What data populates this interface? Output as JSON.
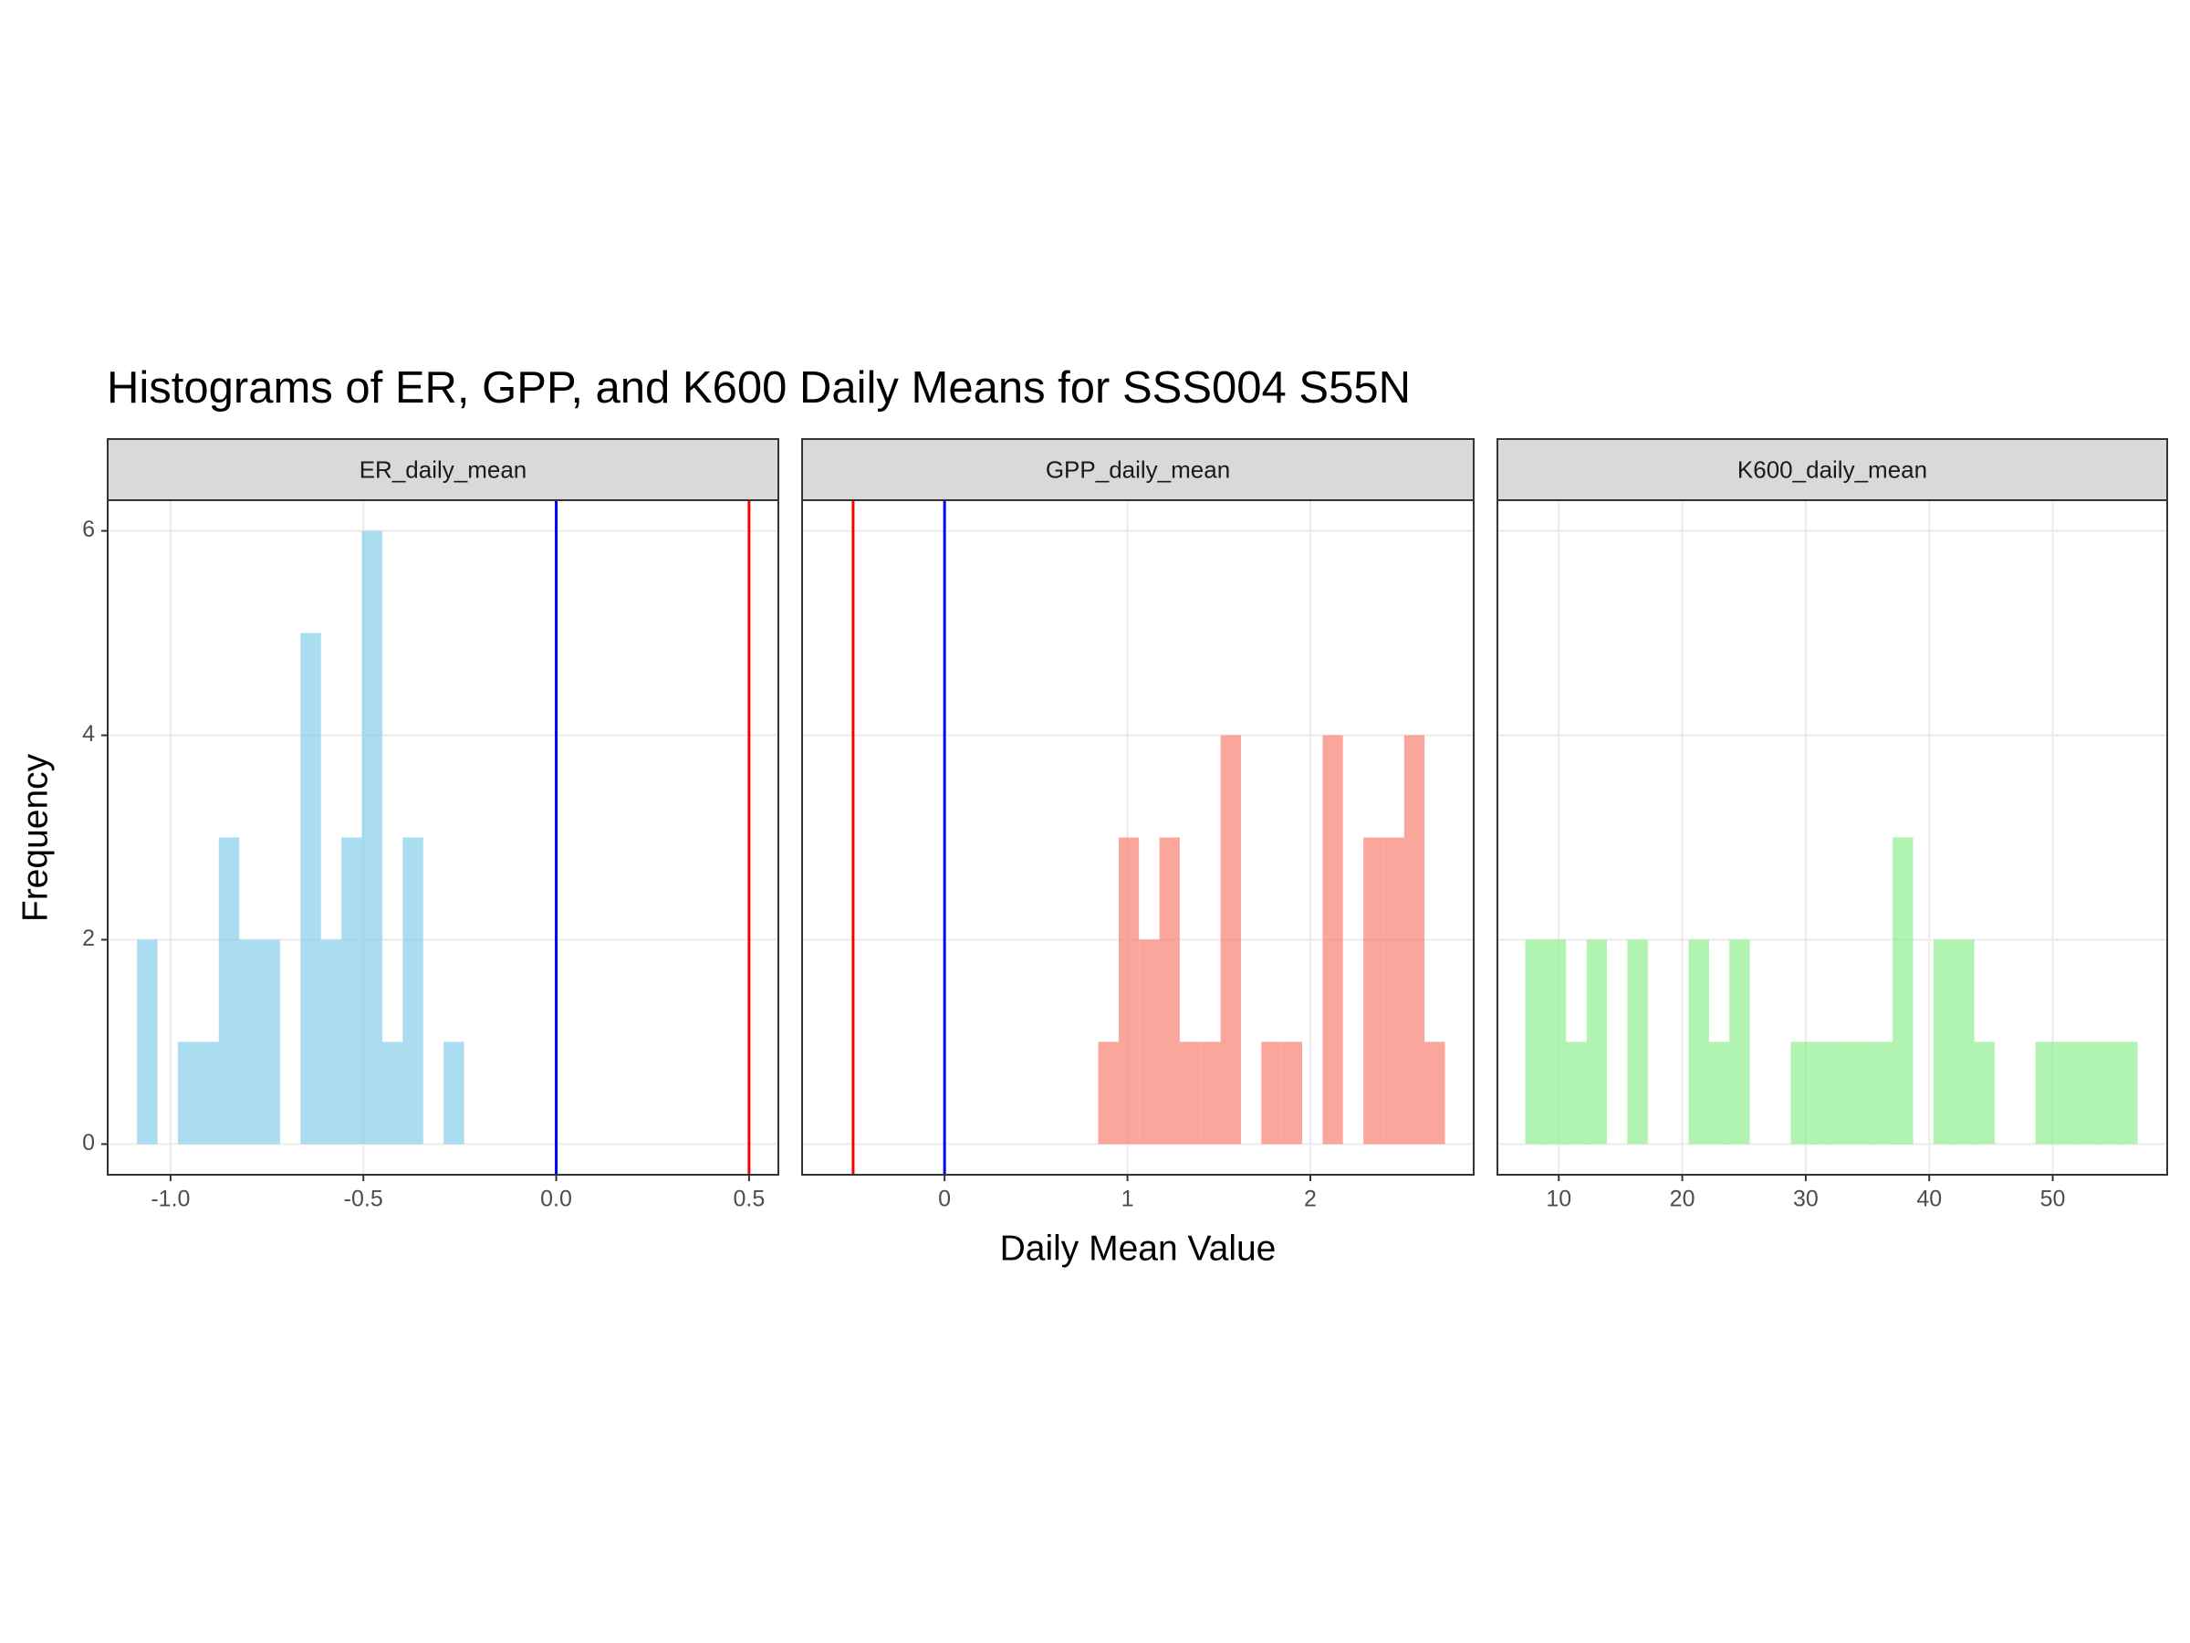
{
  "title": "Histograms of ER, GPP, and K600 Daily Means for SSS004 S55N",
  "xlabel": "Daily Mean Value",
  "ylabel": "Frequency",
  "chart_data": [
    {
      "type": "histogram",
      "title": "ER_daily_mean",
      "color": "skyblue",
      "bins": [
        -1.087,
        -1.034,
        -0.981,
        -0.928,
        -0.875,
        -0.822,
        -0.769,
        -0.716,
        -0.663,
        -0.61,
        -0.557,
        -0.504,
        -0.451,
        -0.398,
        -0.345,
        -0.292,
        -0.239
      ],
      "counts": [
        2,
        0,
        1,
        1,
        3,
        2,
        2,
        0,
        5,
        2,
        3,
        6,
        1,
        3,
        0,
        1
      ],
      "reference_lines": [
        {
          "value": 0,
          "color": "blue"
        },
        {
          "value": 0.5,
          "color": "red"
        }
      ],
      "xlim": [
        -1.163,
        0.576
      ],
      "xticks": [
        {
          "value": -1,
          "label": "-1.0"
        },
        -0.5,
        {
          "value": 0,
          "label": "0.0"
        },
        0.5
      ],
      "ylim": [
        -0.3,
        6.3
      ],
      "yticks": [
        0,
        2,
        4,
        6
      ],
      "grid": true
    },
    {
      "type": "histogram",
      "title": "GPP_daily_mean",
      "color": "salmon",
      "bins": [
        0.84,
        0.952,
        1.063,
        1.175,
        1.286,
        1.398,
        1.509,
        1.621,
        1.732,
        1.844,
        1.955,
        2.067,
        2.178,
        2.29,
        2.401,
        2.513,
        2.624,
        2.736
      ],
      "counts": [
        1,
        3,
        2,
        3,
        1,
        1,
        4,
        0,
        1,
        1,
        0,
        4,
        0,
        3,
        3,
        4,
        1
      ],
      "reference_lines": [
        {
          "value": -0.5,
          "color": "red"
        },
        {
          "value": 0,
          "color": "blue"
        }
      ],
      "xlim": [
        -0.779,
        2.893
      ],
      "xticks": [
        0,
        1,
        2
      ],
      "ylim": [
        -0.3,
        6.3
      ],
      "yticks": [
        0,
        2,
        4,
        6
      ],
      "grid": true
    },
    {
      "type": "histogram",
      "title": "K600_daily_mean",
      "color": "lightgreen",
      "bins": [
        7.29,
        8.94,
        10.59,
        12.25,
        13.9,
        15.55,
        17.21,
        18.86,
        20.51,
        22.17,
        23.82,
        25.47,
        27.12,
        28.78,
        30.43,
        32.08,
        33.74,
        35.39,
        37.04,
        38.7,
        40.35,
        42.0,
        43.65,
        45.31,
        46.96,
        48.61,
        50.27,
        51.92,
        53.57,
        55.23,
        56.88
      ],
      "counts": [
        2,
        2,
        1,
        2,
        0,
        2,
        0,
        0,
        2,
        1,
        2,
        0,
        0,
        1,
        1,
        1,
        1,
        1,
        3,
        0,
        2,
        2,
        1,
        0,
        0,
        1,
        1,
        1,
        1,
        1
      ],
      "xlim": [
        5.03,
        59.27
      ],
      "xticks": [
        10,
        20,
        30,
        40,
        50
      ],
      "ylim": [
        -0.3,
        6.3
      ],
      "yticks": [
        0,
        2,
        4,
        6
      ],
      "grid": true
    }
  ]
}
